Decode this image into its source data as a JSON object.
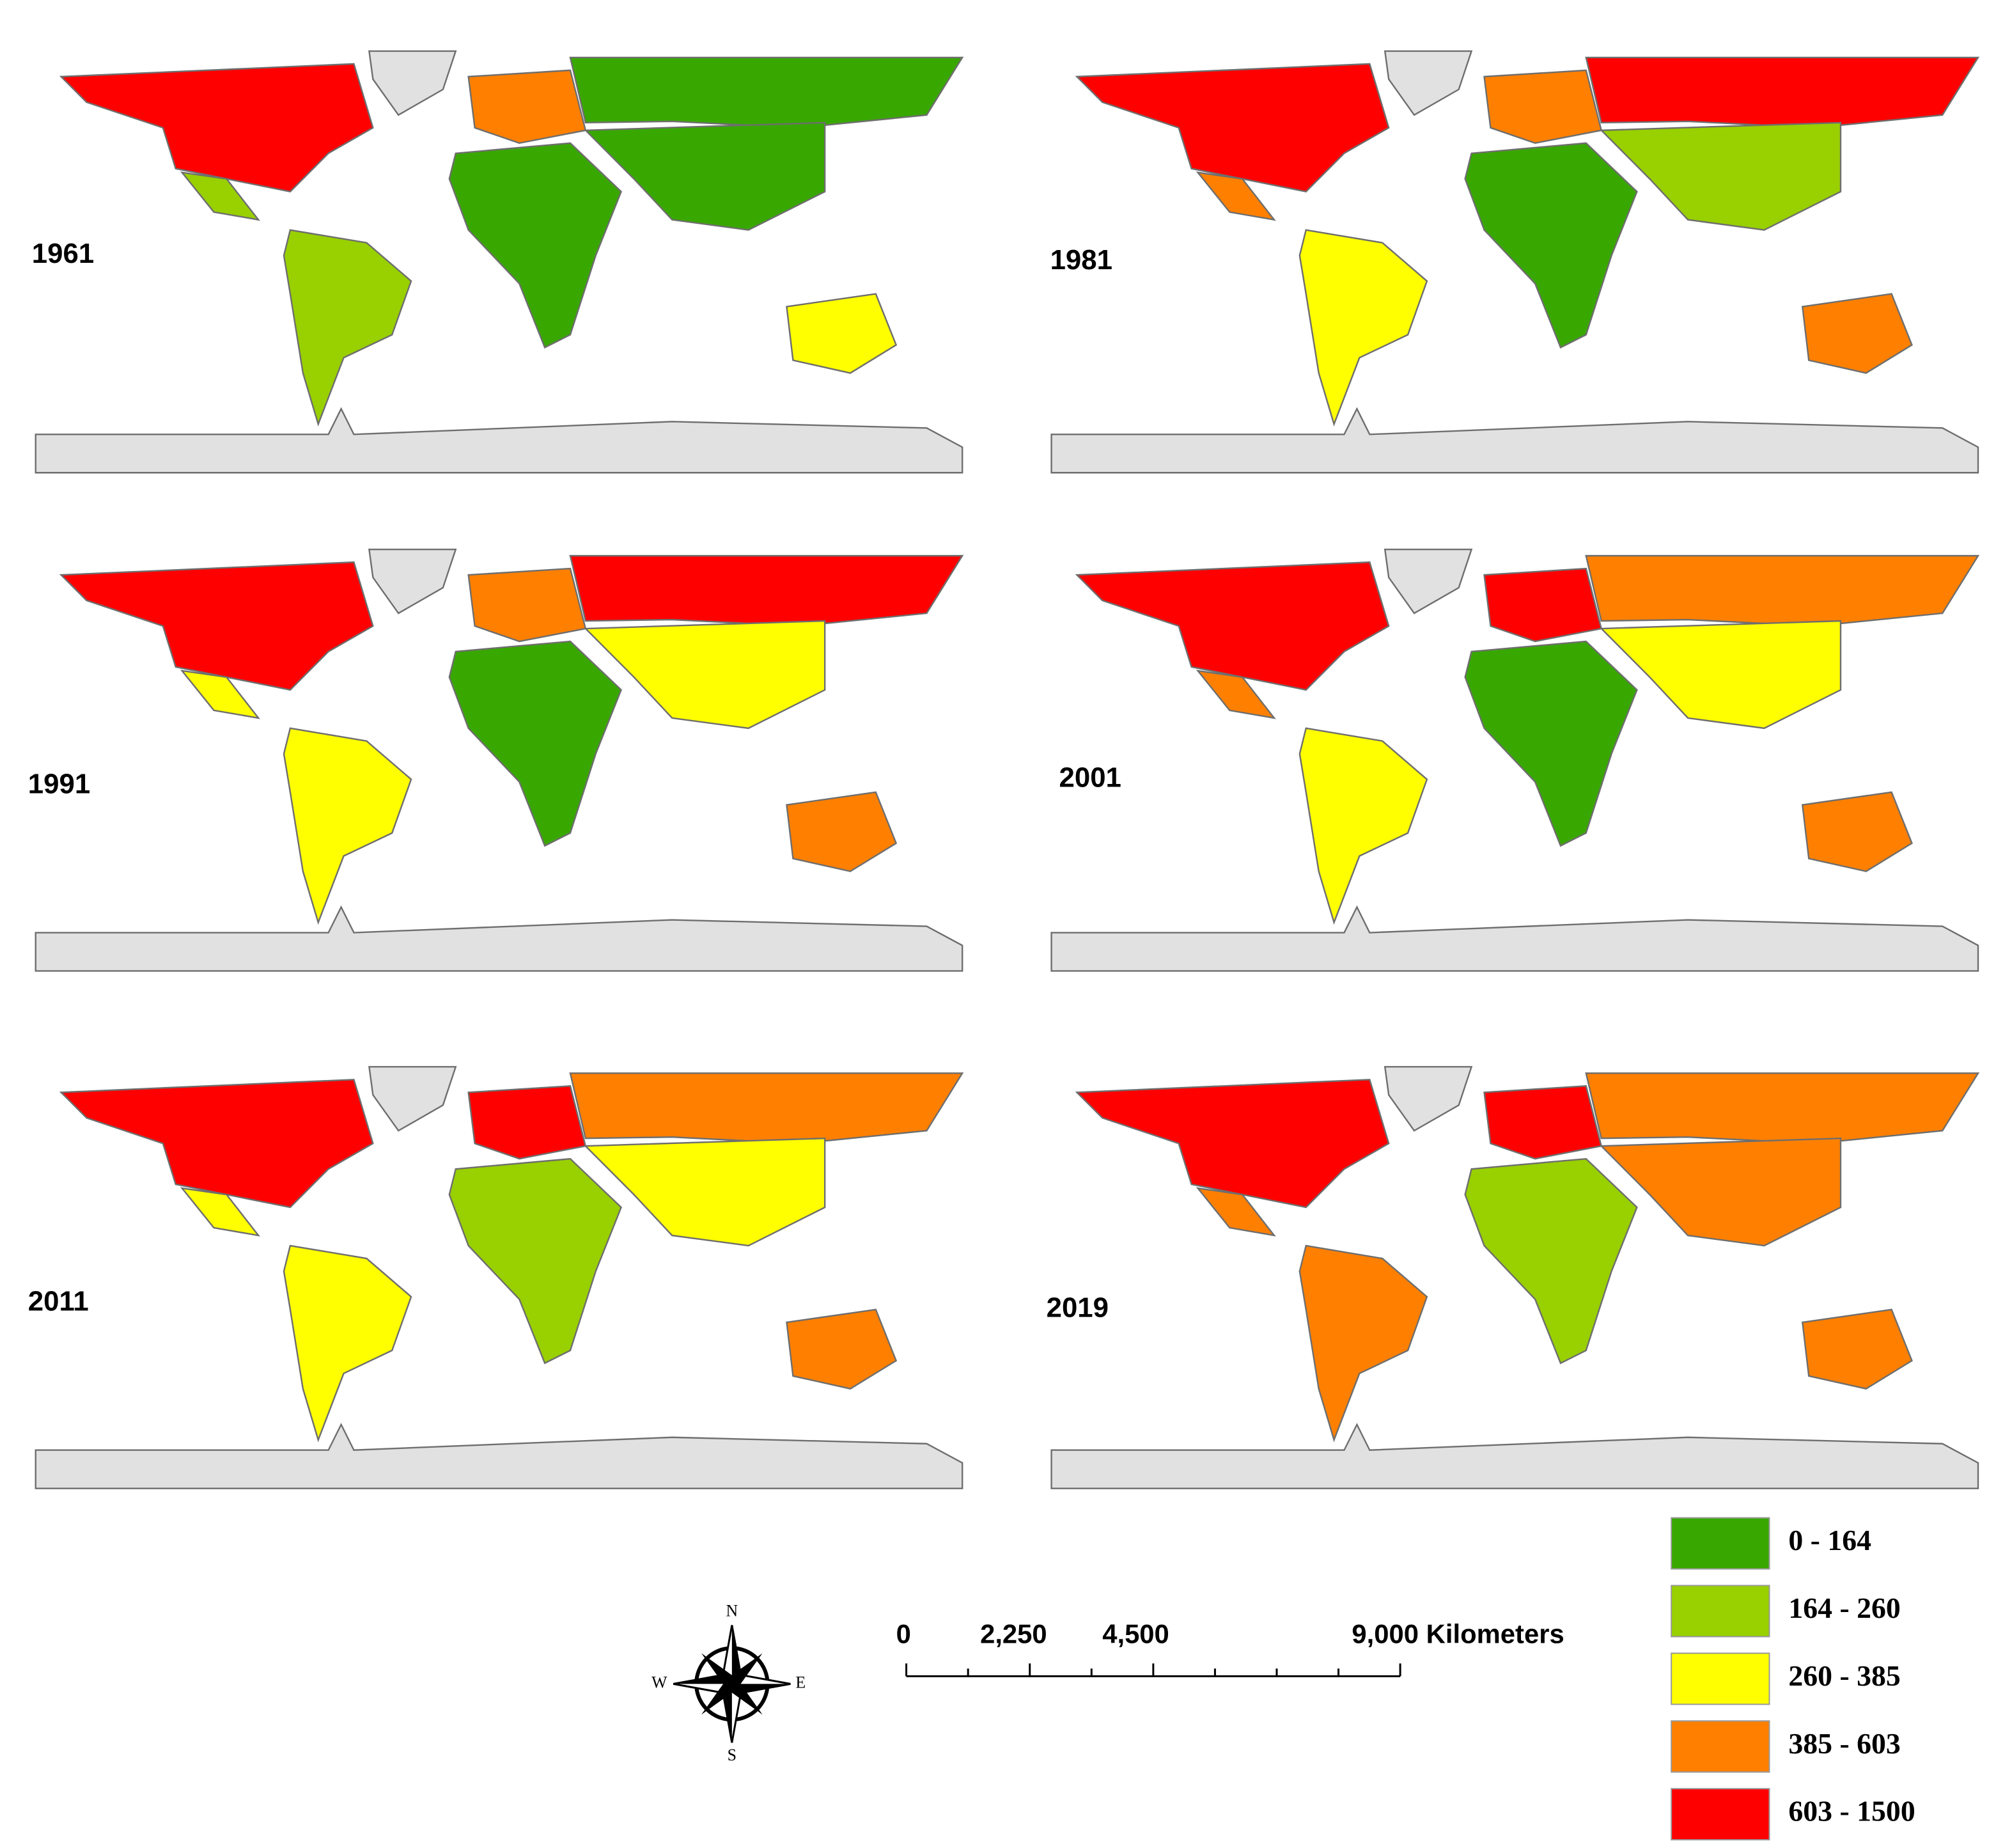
{
  "panels": [
    {
      "year": "1961"
    },
    {
      "year": "1981"
    },
    {
      "year": "1991"
    },
    {
      "year": "2001"
    },
    {
      "year": "2011"
    },
    {
      "year": "2019"
    }
  ],
  "legend": [
    {
      "label": "0 - 164",
      "color": "#38a800"
    },
    {
      "label": "164 - 260",
      "color": "#98d000"
    },
    {
      "label": "260 - 385",
      "color": "#ffff00"
    },
    {
      "label": "385 - 603",
      "color": "#ff8000"
    },
    {
      "label": "603 - 1500",
      "color": "#ff0000"
    }
  ],
  "scale_bar": {
    "labels": [
      "0",
      "2,250",
      "4,500",
      "9,000 Kilometers"
    ]
  },
  "compass": {
    "north": "N",
    "east": "E",
    "south": "S",
    "west": "W"
  }
}
